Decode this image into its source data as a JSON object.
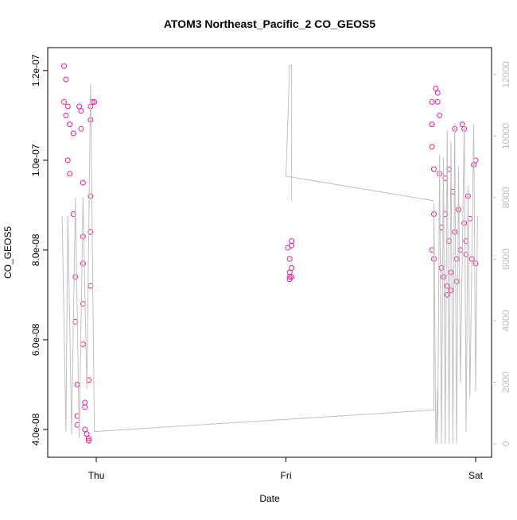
{
  "chart_data": {
    "type": "scatter",
    "title": "ATOM3 Northeast_Pacific_2 CO_GEOS5",
    "x_label": "Date",
    "y_label": "CO_GEOS5",
    "xlim": [
      -0.256,
      2.084
    ],
    "xticks": [
      {
        "value": 0,
        "label": "Thu"
      },
      {
        "value": 1,
        "label": "Fri"
      },
      {
        "value": 2,
        "label": "Sat"
      }
    ],
    "ylim": [
      3.38e-08,
      1.251e-07
    ],
    "yticks": [
      {
        "value": 4e-08,
        "label": "4.0e-08"
      },
      {
        "value": 6e-08,
        "label": "6.0e-08"
      },
      {
        "value": 8e-08,
        "label": "8.0e-08"
      },
      {
        "value": 1e-07,
        "label": "1.0e-07"
      },
      {
        "value": 1.2e-07,
        "label": "1.2e-07"
      }
    ],
    "y2lim": [
      -439,
      12877
    ],
    "y2ticks": [
      0,
      2000,
      4000,
      6000,
      8000,
      10000,
      12000
    ],
    "series": [
      {
        "type": "scatter",
        "color": "#ee1a9a",
        "x": [
          -0.17,
          -0.16,
          -0.17,
          -0.16,
          -0.15,
          -0.14,
          -0.15,
          -0.14,
          -0.12,
          -0.12,
          -0.11,
          -0.11,
          -0.1,
          -0.1,
          -0.1,
          -0.09,
          -0.08,
          -0.08,
          -0.07,
          -0.07,
          -0.07,
          -0.07,
          -0.07,
          -0.06,
          -0.06,
          -0.06,
          -0.05,
          -0.04,
          -0.04,
          -0.03,
          -0.03,
          -0.03,
          -0.03,
          -0.03,
          -0.04,
          -0.02,
          -0.01,
          1.01,
          1.02,
          1.02,
          1.02,
          1.03,
          1.03,
          1.03,
          1.03,
          1.02,
          1.77,
          1.77,
          1.77,
          1.78,
          1.78,
          1.77,
          1.78,
          1.79,
          1.8,
          1.81,
          1.8,
          1.81,
          1.82,
          1.82,
          1.83,
          1.84,
          1.84,
          1.85,
          1.85,
          1.86,
          1.86,
          1.87,
          1.87,
          1.88,
          1.89,
          1.89,
          1.9,
          1.9,
          1.91,
          1.92,
          1.93,
          1.94,
          1.94,
          1.95,
          1.95,
          1.96,
          1.97,
          1.98,
          1.99,
          2.0,
          2.0
        ],
        "values": [
          1.21e-07,
          1.18e-07,
          1.13e-07,
          1.1e-07,
          1.12e-07,
          1.08e-07,
          1e-07,
          9.7e-08,
          1.06e-07,
          8.8e-08,
          7.4e-08,
          6.4e-08,
          5e-08,
          4.3e-08,
          4.1e-08,
          1.12e-07,
          1.11e-07,
          1.07e-07,
          9.5e-08,
          8.3e-08,
          7.7e-08,
          6.8e-08,
          5.9e-08,
          4.6e-08,
          4.5e-08,
          4e-08,
          3.9e-08,
          3.75e-08,
          3.8e-08,
          1.12e-07,
          1.09e-07,
          9.2e-08,
          8.4e-08,
          7.2e-08,
          5.1e-08,
          1.13e-07,
          1.13e-07,
          8.05e-08,
          7.8e-08,
          7.5e-08,
          7.35e-08,
          7.4e-08,
          8.1e-08,
          8.2e-08,
          7.6e-08,
          7.4e-08,
          1.13e-07,
          1.08e-07,
          1.03e-07,
          9.8e-08,
          8.8e-08,
          8e-08,
          7.8e-08,
          1.16e-07,
          1.15e-07,
          1.1e-07,
          1.13e-07,
          9.7e-08,
          8.5e-08,
          7.6e-08,
          7.4e-08,
          9.6e-08,
          8.8e-08,
          7.2e-08,
          7e-08,
          9.8e-08,
          8.2e-08,
          7.5e-08,
          7.1e-08,
          9.3e-08,
          1.07e-07,
          8.4e-08,
          7.8e-08,
          7.3e-08,
          8.9e-08,
          8e-08,
          1.08e-07,
          1.07e-07,
          8.6e-08,
          8.2e-08,
          7.9e-08,
          9.2e-08,
          8.7e-08,
          7.8e-08,
          9.9e-08,
          1e-07,
          7.7e-08
        ]
      },
      {
        "type": "line",
        "axis": "y2",
        "color": "#c0c0c0",
        "x": [
          -0.18,
          -0.16,
          -0.15,
          -0.13,
          -0.11,
          -0.09,
          -0.07,
          -0.05,
          -0.03,
          -0.01,
          0.0,
          1.78,
          1.78,
          1.79,
          1.8,
          1.8,
          1.81,
          1.82,
          1.83,
          1.84,
          1.85,
          1.86,
          1.87,
          1.88,
          1.89,
          1.9,
          1.91,
          1.92,
          1.94,
          1.95,
          1.96,
          1.97,
          1.99,
          2.0,
          2.01,
          null,
          1.03,
          1.03,
          1.02,
          1.0,
          1.78
        ],
        "values": [
          7400,
          400,
          7400,
          300,
          8000,
          200,
          8000,
          1800,
          11700,
          400,
          400,
          1100,
          7800,
          0,
          1800,
          0,
          9400,
          0,
          9300,
          0,
          10200,
          0,
          9800,
          0,
          10400,
          0,
          9000,
          2000,
          10400,
          400,
          8400,
          1500,
          10400,
          1700,
          7400,
          null,
          7900,
          12300,
          12300,
          8700,
          7900
        ]
      }
    ]
  }
}
